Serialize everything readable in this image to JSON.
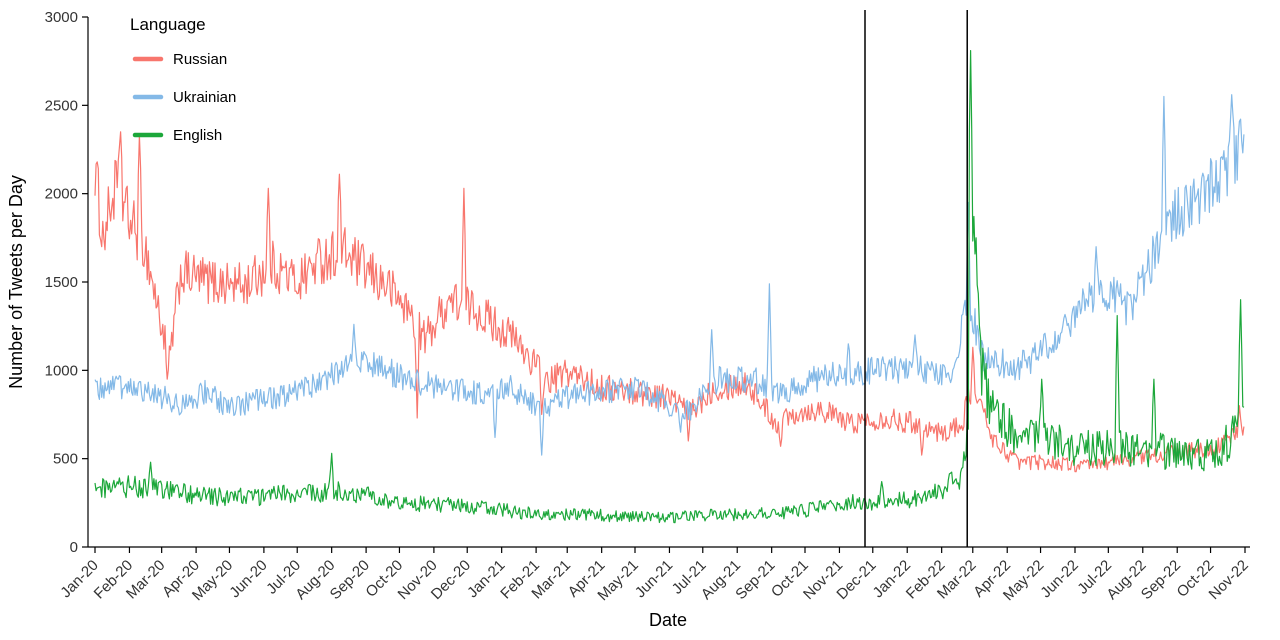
{
  "chart_data": {
    "type": "line",
    "title": "",
    "xlabel": "Date",
    "ylabel": "Number of Tweets per Day",
    "ylim": [
      0,
      3000
    ],
    "yticks": [
      0,
      500,
      1000,
      1500,
      2000,
      2500,
      3000
    ],
    "x_tick_labels": [
      "Jan-20",
      "Feb-20",
      "Mar-20",
      "Apr-20",
      "May-20",
      "Jun-20",
      "Jul-20",
      "Aug-20",
      "Sep-20",
      "Oct-20",
      "Nov-20",
      "Dec-20",
      "Jan-21",
      "Feb-21",
      "Mar-21",
      "Apr-21",
      "May-21",
      "Jun-21",
      "Jul-21",
      "Aug-21",
      "Sep-21",
      "Oct-21",
      "Nov-21",
      "Dec-21",
      "Jan-22",
      "Feb-22",
      "Mar-22",
      "Apr-22",
      "May-22",
      "Jun-22",
      "Jul-22",
      "Aug-22",
      "Sep-22",
      "Oct-22",
      "Nov-22"
    ],
    "legend_title": "Language",
    "legend_position": "top-left",
    "grid": false,
    "vlines": [
      "2021-11-24",
      "2022-02-24"
    ],
    "series": [
      {
        "name": "Russian",
        "color": "#F8766D",
        "volatility": 0.055,
        "anchors": [
          [
            "2020-01-01",
            2150
          ],
          [
            "2020-01-08",
            1750
          ],
          [
            "2020-01-20",
            2050
          ],
          [
            "2020-02-01",
            1850
          ],
          [
            "2020-02-15",
            1700
          ],
          [
            "2020-03-01",
            1250
          ],
          [
            "2020-03-08",
            1050
          ],
          [
            "2020-03-18",
            1550
          ],
          [
            "2020-04-15",
            1500
          ],
          [
            "2020-05-15",
            1480
          ],
          [
            "2020-06-08",
            1600
          ],
          [
            "2020-07-01",
            1500
          ],
          [
            "2020-07-20",
            1620
          ],
          [
            "2020-08-10",
            1680
          ],
          [
            "2020-09-01",
            1560
          ],
          [
            "2020-09-20",
            1480
          ],
          [
            "2020-10-10",
            1330
          ],
          [
            "2020-10-24",
            1180
          ],
          [
            "2020-11-15",
            1400
          ],
          [
            "2020-12-10",
            1340
          ],
          [
            "2021-01-10",
            1190
          ],
          [
            "2021-02-01",
            1030
          ],
          [
            "2021-02-12",
            930
          ],
          [
            "2021-03-01",
            990
          ],
          [
            "2021-04-01",
            900
          ],
          [
            "2021-05-01",
            880
          ],
          [
            "2021-06-01",
            850
          ],
          [
            "2021-06-20",
            760
          ],
          [
            "2021-07-10",
            900
          ],
          [
            "2021-08-10",
            930
          ],
          [
            "2021-09-05",
            700
          ],
          [
            "2021-09-20",
            760
          ],
          [
            "2021-10-15",
            780
          ],
          [
            "2021-11-10",
            700
          ],
          [
            "2021-12-10",
            730
          ],
          [
            "2022-01-10",
            700
          ],
          [
            "2022-02-01",
            640
          ],
          [
            "2022-02-20",
            700
          ],
          [
            "2022-02-26",
            880
          ],
          [
            "2022-03-06",
            830
          ],
          [
            "2022-03-20",
            600
          ],
          [
            "2022-04-10",
            480
          ],
          [
            "2022-05-10",
            480
          ],
          [
            "2022-06-10",
            455
          ],
          [
            "2022-07-10",
            490
          ],
          [
            "2022-08-10",
            520
          ],
          [
            "2022-09-10",
            540
          ],
          [
            "2022-10-10",
            570
          ],
          [
            "2022-10-31",
            690
          ]
        ],
        "spikes": [
          [
            "2020-01-24",
            2350
          ],
          [
            "2020-02-10",
            2330
          ],
          [
            "2020-03-06",
            950
          ],
          [
            "2020-06-05",
            2030
          ],
          [
            "2020-08-08",
            2110
          ],
          [
            "2020-10-17",
            730
          ],
          [
            "2020-11-28",
            2030
          ],
          [
            "2021-02-06",
            750
          ],
          [
            "2021-06-18",
            600
          ],
          [
            "2021-09-09",
            570
          ],
          [
            "2022-01-14",
            520
          ],
          [
            "2022-03-01",
            1130
          ],
          [
            "2022-10-27",
            800
          ]
        ]
      },
      {
        "name": "Ukrainian",
        "color": "#84B9E7",
        "volatility": 0.05,
        "anchors": [
          [
            "2020-01-01",
            880
          ],
          [
            "2020-02-01",
            920
          ],
          [
            "2020-03-01",
            850
          ],
          [
            "2020-03-20",
            800
          ],
          [
            "2020-04-10",
            880
          ],
          [
            "2020-05-01",
            780
          ],
          [
            "2020-05-20",
            820
          ],
          [
            "2020-06-15",
            850
          ],
          [
            "2020-07-10",
            900
          ],
          [
            "2020-08-01",
            980
          ],
          [
            "2020-08-20",
            1050
          ],
          [
            "2020-09-10",
            1020
          ],
          [
            "2020-10-10",
            950
          ],
          [
            "2020-11-10",
            900
          ],
          [
            "2020-12-10",
            870
          ],
          [
            "2021-01-10",
            900
          ],
          [
            "2021-02-05",
            780
          ],
          [
            "2021-03-01",
            850
          ],
          [
            "2021-04-01",
            880
          ],
          [
            "2021-05-01",
            900
          ],
          [
            "2021-06-01",
            800
          ],
          [
            "2021-06-20",
            780
          ],
          [
            "2021-07-15",
            950
          ],
          [
            "2021-08-15",
            950
          ],
          [
            "2021-09-10",
            870
          ],
          [
            "2021-10-10",
            950
          ],
          [
            "2021-11-10",
            990
          ],
          [
            "2021-12-10",
            1000
          ],
          [
            "2022-01-10",
            1010
          ],
          [
            "2022-02-10",
            980
          ],
          [
            "2022-02-25",
            1400
          ],
          [
            "2022-03-10",
            1080
          ],
          [
            "2022-04-10",
            1010
          ],
          [
            "2022-05-10",
            1150
          ],
          [
            "2022-06-10",
            1380
          ],
          [
            "2022-07-01",
            1450
          ],
          [
            "2022-07-20",
            1350
          ],
          [
            "2022-08-10",
            1650
          ],
          [
            "2022-08-25",
            1850
          ],
          [
            "2022-09-15",
            1950
          ],
          [
            "2022-10-10",
            2100
          ],
          [
            "2022-10-31",
            2300
          ]
        ],
        "spikes": [
          [
            "2020-08-21",
            1260
          ],
          [
            "2020-12-26",
            620
          ],
          [
            "2021-02-06",
            520
          ],
          [
            "2021-06-11",
            650
          ],
          [
            "2021-07-09",
            1230
          ],
          [
            "2021-08-30",
            1490
          ],
          [
            "2021-11-09",
            1150
          ],
          [
            "2022-01-08",
            1200
          ],
          [
            "2022-02-25",
            1950
          ],
          [
            "2022-06-20",
            1700
          ],
          [
            "2022-08-20",
            2550
          ],
          [
            "2022-10-20",
            2560
          ]
        ]
      },
      {
        "name": "English",
        "color": "#1CA73A",
        "volatility": 0.12,
        "anchors": [
          [
            "2020-01-01",
            320
          ],
          [
            "2020-02-01",
            340
          ],
          [
            "2020-03-01",
            320
          ],
          [
            "2020-04-01",
            290
          ],
          [
            "2020-05-01",
            280
          ],
          [
            "2020-06-01",
            290
          ],
          [
            "2020-07-01",
            300
          ],
          [
            "2020-08-01",
            320
          ],
          [
            "2020-09-01",
            290
          ],
          [
            "2020-10-01",
            260
          ],
          [
            "2020-11-01",
            240
          ],
          [
            "2020-12-01",
            230
          ],
          [
            "2021-01-01",
            210
          ],
          [
            "2021-02-01",
            185
          ],
          [
            "2021-03-01",
            185
          ],
          [
            "2021-04-01",
            180
          ],
          [
            "2021-05-01",
            170
          ],
          [
            "2021-06-01",
            165
          ],
          [
            "2021-07-01",
            180
          ],
          [
            "2021-08-01",
            185
          ],
          [
            "2021-09-01",
            190
          ],
          [
            "2021-10-01",
            205
          ],
          [
            "2021-11-01",
            245
          ],
          [
            "2021-12-01",
            255
          ],
          [
            "2022-01-01",
            265
          ],
          [
            "2022-02-01",
            310
          ],
          [
            "2022-02-20",
            420
          ],
          [
            "2022-02-25",
            700
          ],
          [
            "2022-02-27",
            2400
          ],
          [
            "2022-03-02",
            1600
          ],
          [
            "2022-03-10",
            950
          ],
          [
            "2022-03-25",
            700
          ],
          [
            "2022-04-10",
            650
          ],
          [
            "2022-05-10",
            590
          ],
          [
            "2022-06-10",
            560
          ],
          [
            "2022-07-10",
            560
          ],
          [
            "2022-08-10",
            555
          ],
          [
            "2022-09-10",
            520
          ],
          [
            "2022-10-10",
            540
          ],
          [
            "2022-10-31",
            700
          ]
        ],
        "spikes": [
          [
            "2020-02-20",
            480
          ],
          [
            "2020-08-01",
            530
          ],
          [
            "2021-12-09",
            370
          ],
          [
            "2022-02-27",
            2810
          ],
          [
            "2022-03-04",
            1750
          ],
          [
            "2022-05-02",
            950
          ],
          [
            "2022-07-09",
            1310
          ],
          [
            "2022-08-11",
            950
          ],
          [
            "2022-10-28",
            1400
          ]
        ]
      }
    ]
  }
}
